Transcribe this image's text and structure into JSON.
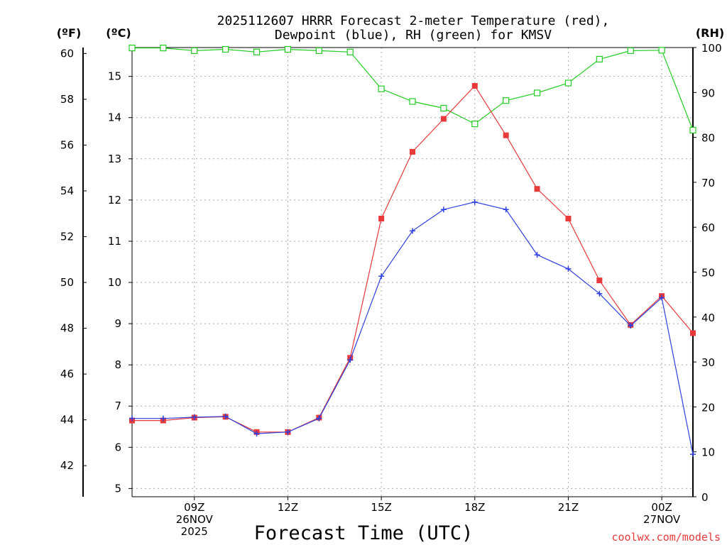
{
  "chart_data": {
    "type": "line",
    "title": [
      "2025112607 HRRR Forecast 2-meter Temperature (red),",
      "Dewpoint (blue), RH (green) for KMSV"
    ],
    "xlabel": "Forecast Time (UTC)",
    "credit": "coolwx.com/models",
    "axis_units": {
      "fahrenheit": "(ºF)",
      "celsius": "(ºC)",
      "rh": "(RH)"
    },
    "x_hours": [
      7,
      8,
      9,
      10,
      11,
      12,
      13,
      14,
      15,
      16,
      17,
      18,
      19,
      20,
      21,
      22,
      23,
      24,
      25
    ],
    "x_range": [
      7,
      25
    ],
    "x_ticks": [
      {
        "hour": 9,
        "lines": [
          "09Z",
          "26NOV",
          "2025"
        ]
      },
      {
        "hour": 12,
        "lines": [
          "12Z"
        ]
      },
      {
        "hour": 15,
        "lines": [
          "15Z"
        ]
      },
      {
        "hour": 18,
        "lines": [
          "18Z"
        ]
      },
      {
        "hour": 21,
        "lines": [
          "21Z"
        ]
      },
      {
        "hour": 24,
        "lines": [
          "00Z",
          "27NOV"
        ]
      }
    ],
    "y_celsius": {
      "range": [
        4.8,
        15.7
      ],
      "ticks": [
        "5",
        "6",
        "7",
        "8",
        "9",
        "10",
        "11",
        "12",
        "13",
        "14",
        "15"
      ]
    },
    "y_fahrenheit": {
      "ticks": [
        "42",
        "44",
        "46",
        "48",
        "50",
        "52",
        "54",
        "56",
        "58",
        "60"
      ]
    },
    "y_rh": {
      "range": [
        0,
        100
      ],
      "ticks": [
        "0",
        "10",
        "20",
        "30",
        "40",
        "50",
        "60",
        "70",
        "80",
        "90",
        "100"
      ]
    },
    "grid": true,
    "series": [
      {
        "name": "Temperature",
        "units": "°C",
        "color": "#e8393b",
        "marker": "filled-square",
        "values": [
          6.65,
          6.65,
          6.72,
          6.74,
          6.37,
          6.37,
          6.72,
          8.17,
          11.55,
          13.17,
          13.97,
          14.77,
          13.57,
          12.27,
          11.55,
          10.05,
          8.97,
          9.67,
          8.77
        ]
      },
      {
        "name": "Dewpoint",
        "units": "°C",
        "color": "#2f3fe0",
        "marker": "plus",
        "values": [
          6.7,
          6.7,
          6.73,
          6.75,
          6.33,
          6.37,
          6.7,
          8.12,
          10.15,
          11.25,
          11.77,
          11.95,
          11.77,
          10.67,
          10.33,
          9.73,
          8.95,
          9.63,
          5.83
        ]
      },
      {
        "name": "RH",
        "units": "%",
        "color": "#22cc22",
        "marker": "open-square",
        "values": [
          99.9,
          99.9,
          99.3,
          99.6,
          99.0,
          99.6,
          99.3,
          99.0,
          90.8,
          88.0,
          86.5,
          83.0,
          88.2,
          89.9,
          92.1,
          97.4,
          99.3,
          99.4,
          81.6
        ]
      }
    ]
  }
}
